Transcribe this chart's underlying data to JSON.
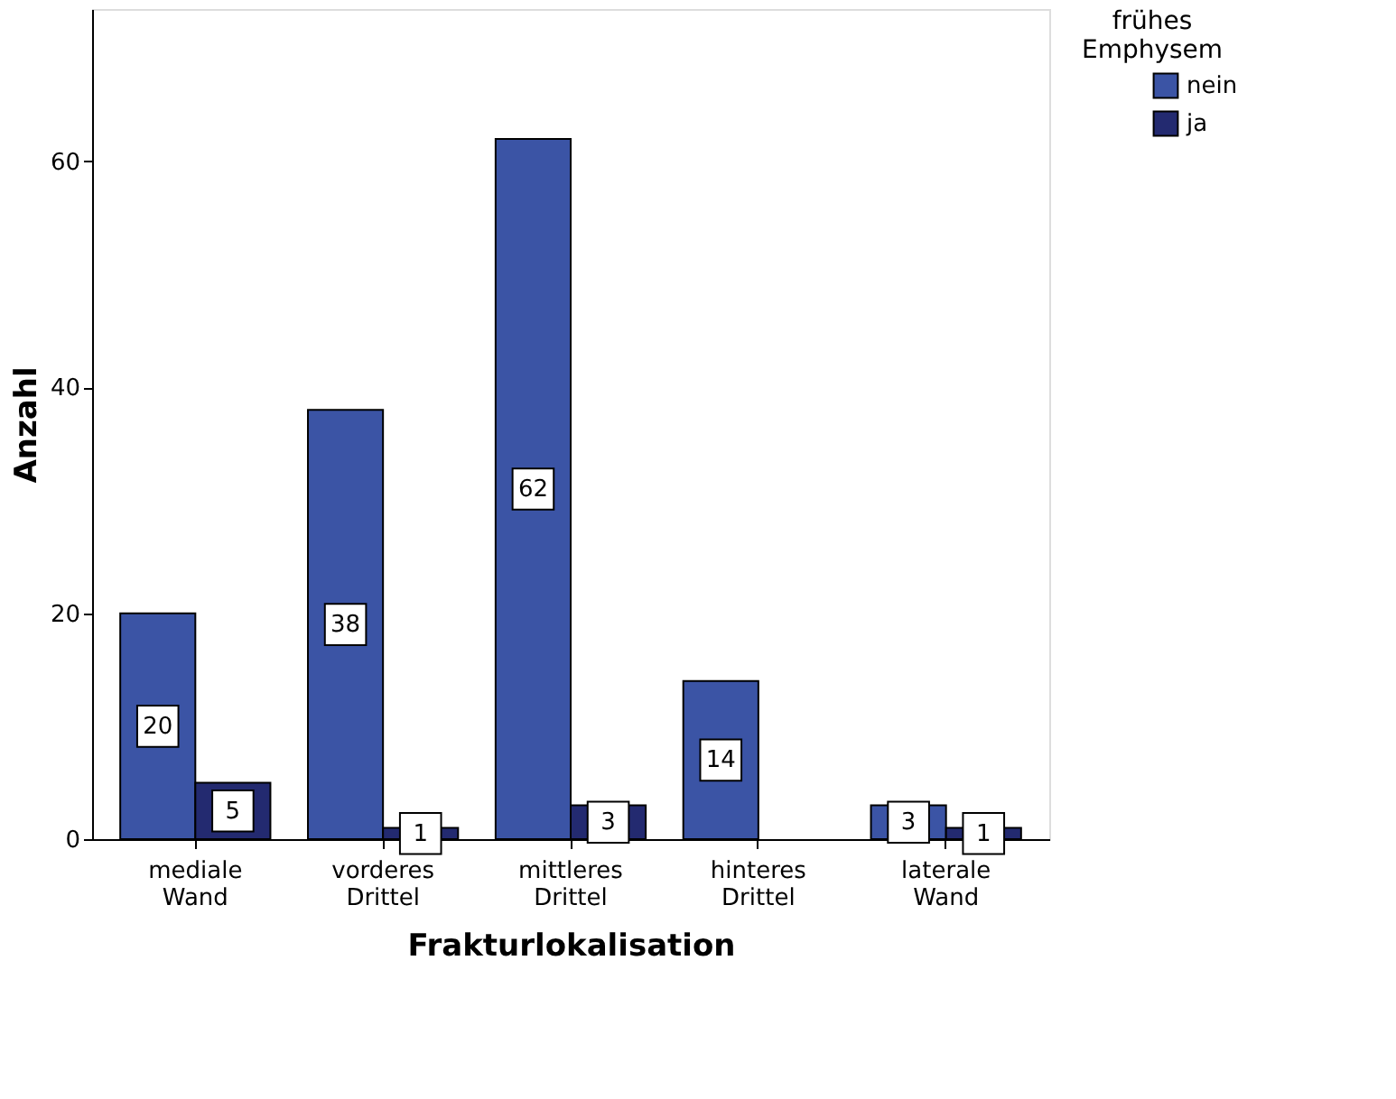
{
  "chart_data": {
    "type": "bar",
    "xlabel": "Frakturlokalisation",
    "ylabel": "Anzahl",
    "legend_title": "frühes Emphysem",
    "categories": [
      "mediale Wand",
      "vorderes Drittel",
      "mittleres Drittel",
      "hinteres Drittel",
      "laterale Wand"
    ],
    "series": [
      {
        "name": "nein",
        "color": "#3b54a5",
        "values": [
          20,
          38,
          62,
          14,
          3
        ]
      },
      {
        "name": "ja",
        "color": "#232a70",
        "values": [
          5,
          1,
          3,
          null,
          1
        ]
      }
    ],
    "ylim": [
      0,
      73.5
    ],
    "yticks": [
      0,
      20,
      40,
      60
    ],
    "grid": false,
    "legend": "top right",
    "data_labels": true
  }
}
